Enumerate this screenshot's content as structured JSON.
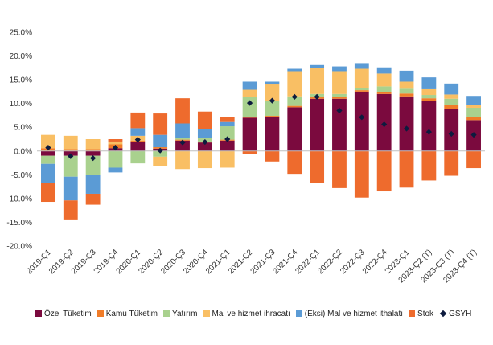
{
  "chart_data": {
    "type": "bar",
    "stacked": true,
    "title": "",
    "xlabel": "",
    "ylabel": "",
    "ylim": [
      -0.2,
      0.25
    ],
    "y_ticks": [
      "25.0%",
      "20.0%",
      "15.0%",
      "10.0%",
      "5.0%",
      "0.0%",
      "-5.0%",
      "-10.0%",
      "-15.0%",
      "-20.0%"
    ],
    "categories": [
      "2019-Ç1",
      "2019-Ç2",
      "2019-Ç3",
      "2019-Ç4",
      "2020-Ç1",
      "2020-Ç2",
      "2020-Ç3",
      "2020-Ç4",
      "2021-Ç1",
      "2021-Ç2",
      "2021-Ç3",
      "2021-Ç4",
      "2022-Ç1",
      "2022-Ç2",
      "2022-Ç3",
      "2022-Ç4",
      "2023-Ç1",
      "2023-Ç2 (T)",
      "2023-Ç3 (T)",
      "2023-Ç4 (T)"
    ],
    "legend_position": "bottom",
    "grid": false,
    "series": [
      {
        "name": "Özel Tüketim",
        "color": "#7b0a3e",
        "values": [
          -0.01,
          -0.01,
          -0.01,
          0.006,
          0.02,
          0.005,
          0.022,
          0.018,
          0.022,
          0.07,
          0.072,
          0.092,
          0.11,
          0.11,
          0.125,
          0.12,
          0.115,
          0.105,
          0.088,
          0.065
        ]
      },
      {
        "name": "Kamu Tüketim",
        "color": "#f07c28",
        "values": [
          0.006,
          0.004,
          0.004,
          0.008,
          0.002,
          0.003,
          0.002,
          0.002,
          0.002,
          0.002,
          0.002,
          0.003,
          0.003,
          0.004,
          0.003,
          0.004,
          0.006,
          0.006,
          0.009,
          0.006
        ]
      },
      {
        "name": "Yatırım",
        "color": "#a9d18e",
        "values": [
          -0.017,
          -0.044,
          -0.04,
          -0.035,
          -0.026,
          -0.012,
          0.003,
          0.008,
          0.028,
          0.042,
          0.032,
          0.02,
          0.007,
          0.006,
          0.005,
          0.012,
          0.01,
          0.007,
          0.013,
          0.02
        ]
      },
      {
        "name": "Mal ve hizmet ihracatı",
        "color": "#f9bf64",
        "values": [
          0.028,
          0.028,
          0.021,
          0.006,
          0.01,
          -0.02,
          -0.038,
          -0.036,
          -0.035,
          0.015,
          0.034,
          0.053,
          0.055,
          0.048,
          0.04,
          0.027,
          0.015,
          0.012,
          0.009,
          0.006
        ]
      },
      {
        "name": "(Eksi) Mal ve hizmet ithalatı",
        "color": "#5b9bd5",
        "values": [
          -0.04,
          -0.05,
          -0.04,
          -0.01,
          0.016,
          0.026,
          0.031,
          0.019,
          0.009,
          0.017,
          0.006,
          0.005,
          0.006,
          0.01,
          0.012,
          0.013,
          0.023,
          0.025,
          0.023,
          0.019
        ]
      },
      {
        "name": "Stok",
        "color": "#ee6b2d",
        "values": [
          -0.04,
          -0.04,
          -0.023,
          0.005,
          0.033,
          0.045,
          0.053,
          0.036,
          0.011,
          -0.006,
          -0.022,
          -0.048,
          -0.068,
          -0.078,
          -0.098,
          -0.085,
          -0.077,
          -0.062,
          -0.052,
          -0.036
        ]
      }
    ],
    "line": {
      "name": "GSYH",
      "color": "#0d1b3e",
      "values": [
        0.007,
        -0.011,
        -0.015,
        0.007,
        0.024,
        0.001,
        0.018,
        0.019,
        0.025,
        0.101,
        0.106,
        0.114,
        0.114,
        0.085,
        0.071,
        0.056,
        0.047,
        0.04,
        0.036,
        0.034
      ]
    }
  }
}
